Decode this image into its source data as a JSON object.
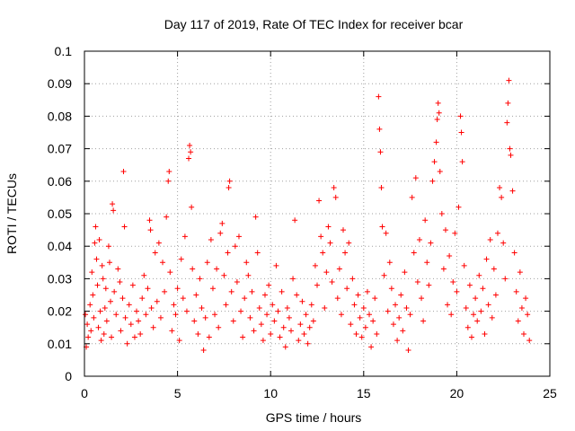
{
  "chart_data": {
    "type": "scatter",
    "title": "Day 117 of 2019, Rate Of TEC Index for receiver bcar",
    "xlabel": "GPS time / hours",
    "ylabel": "ROTI / TECUs",
    "xlim": [
      0,
      25
    ],
    "ylim": [
      0,
      0.1
    ],
    "xticks": [
      "0",
      "5",
      "10",
      "15",
      "20",
      "25"
    ],
    "yticks": [
      "0",
      "0.01",
      "0.02",
      "0.03",
      "0.04",
      "0.05",
      "0.06",
      "0.07",
      "0.08",
      "0.09",
      "0.1"
    ],
    "grid": true,
    "marker": "+",
    "color": "#ff0000",
    "series": [
      {
        "points": [
          [
            0.05,
            0.019
          ],
          [
            0.1,
            0.009
          ],
          [
            0.15,
            0.016
          ],
          [
            0.2,
            0.012
          ],
          [
            0.3,
            0.022
          ],
          [
            0.35,
            0.014
          ],
          [
            0.4,
            0.032
          ],
          [
            0.45,
            0.025
          ],
          [
            0.5,
            0.018
          ],
          [
            0.55,
            0.041
          ],
          [
            0.6,
            0.046
          ],
          [
            0.65,
            0.036
          ],
          [
            0.7,
            0.028
          ],
          [
            0.75,
            0.015
          ],
          [
            0.8,
            0.042
          ],
          [
            0.85,
            0.02
          ],
          [
            0.9,
            0.011
          ],
          [
            0.95,
            0.034
          ],
          [
            1.0,
            0.03
          ],
          [
            1.05,
            0.013
          ],
          [
            1.1,
            0.021
          ],
          [
            1.15,
            0.027
          ],
          [
            1.2,
            0.017
          ],
          [
            1.3,
            0.04
          ],
          [
            1.35,
            0.035
          ],
          [
            1.4,
            0.023
          ],
          [
            1.45,
            0.012
          ],
          [
            1.5,
            0.053
          ],
          [
            1.55,
            0.051
          ],
          [
            1.6,
            0.026
          ],
          [
            1.7,
            0.019
          ],
          [
            1.8,
            0.033
          ],
          [
            1.9,
            0.029
          ],
          [
            1.95,
            0.014
          ],
          [
            2.05,
            0.024
          ],
          [
            2.1,
            0.063
          ],
          [
            2.15,
            0.046
          ],
          [
            2.2,
            0.018
          ],
          [
            2.3,
            0.01
          ],
          [
            2.4,
            0.022
          ],
          [
            2.5,
            0.016
          ],
          [
            2.6,
            0.028
          ],
          [
            2.7,
            0.012
          ],
          [
            2.8,
            0.02
          ],
          [
            2.9,
            0.017
          ],
          [
            3.0,
            0.013
          ],
          [
            3.1,
            0.024
          ],
          [
            3.2,
            0.031
          ],
          [
            3.3,
            0.019
          ],
          [
            3.4,
            0.027
          ],
          [
            3.5,
            0.048
          ],
          [
            3.55,
            0.045
          ],
          [
            3.6,
            0.021
          ],
          [
            3.7,
            0.015
          ],
          [
            3.8,
            0.038
          ],
          [
            3.9,
            0.023
          ],
          [
            4.0,
            0.041
          ],
          [
            4.1,
            0.018
          ],
          [
            4.2,
            0.035
          ],
          [
            4.3,
            0.026
          ],
          [
            4.4,
            0.049
          ],
          [
            4.5,
            0.06
          ],
          [
            4.55,
            0.063
          ],
          [
            4.6,
            0.032
          ],
          [
            4.7,
            0.014
          ],
          [
            4.8,
            0.022
          ],
          [
            4.9,
            0.019
          ],
          [
            5.0,
            0.027
          ],
          [
            5.1,
            0.011
          ],
          [
            5.2,
            0.036
          ],
          [
            5.3,
            0.024
          ],
          [
            5.4,
            0.043
          ],
          [
            5.5,
            0.02
          ],
          [
            5.6,
            0.067
          ],
          [
            5.65,
            0.071
          ],
          [
            5.7,
            0.069
          ],
          [
            5.75,
            0.052
          ],
          [
            5.8,
            0.033
          ],
          [
            5.9,
            0.017
          ],
          [
            6.0,
            0.025
          ],
          [
            6.1,
            0.013
          ],
          [
            6.2,
            0.03
          ],
          [
            6.3,
            0.021
          ],
          [
            6.4,
            0.008
          ],
          [
            6.5,
            0.018
          ],
          [
            6.6,
            0.035
          ],
          [
            6.7,
            0.012
          ],
          [
            6.8,
            0.042
          ],
          [
            6.9,
            0.027
          ],
          [
            7.0,
            0.019
          ],
          [
            7.1,
            0.033
          ],
          [
            7.2,
            0.015
          ],
          [
            7.3,
            0.044
          ],
          [
            7.4,
            0.047
          ],
          [
            7.5,
            0.031
          ],
          [
            7.6,
            0.022
          ],
          [
            7.7,
            0.038
          ],
          [
            7.75,
            0.058
          ],
          [
            7.8,
            0.06
          ],
          [
            7.9,
            0.026
          ],
          [
            8.0,
            0.017
          ],
          [
            8.1,
            0.04
          ],
          [
            8.2,
            0.029
          ],
          [
            8.3,
            0.043
          ],
          [
            8.4,
            0.02
          ],
          [
            8.5,
            0.012
          ],
          [
            8.6,
            0.024
          ],
          [
            8.7,
            0.035
          ],
          [
            8.8,
            0.031
          ],
          [
            8.9,
            0.018
          ],
          [
            9.0,
            0.026
          ],
          [
            9.1,
            0.014
          ],
          [
            9.2,
            0.049
          ],
          [
            9.3,
            0.038
          ],
          [
            9.4,
            0.021
          ],
          [
            9.5,
            0.016
          ],
          [
            9.6,
            0.011
          ],
          [
            9.7,
            0.025
          ],
          [
            9.8,
            0.019
          ],
          [
            9.9,
            0.028
          ],
          [
            10.0,
            0.013
          ],
          [
            10.1,
            0.022
          ],
          [
            10.2,
            0.017
          ],
          [
            10.3,
            0.034
          ],
          [
            10.4,
            0.02
          ],
          [
            10.5,
            0.012
          ],
          [
            10.6,
            0.026
          ],
          [
            10.7,
            0.015
          ],
          [
            10.8,
            0.009
          ],
          [
            10.9,
            0.021
          ],
          [
            11.0,
            0.018
          ],
          [
            11.1,
            0.014
          ],
          [
            11.2,
            0.03
          ],
          [
            11.3,
            0.048
          ],
          [
            11.4,
            0.025
          ],
          [
            11.5,
            0.011
          ],
          [
            11.6,
            0.016
          ],
          [
            11.7,
            0.023
          ],
          [
            11.8,
            0.013
          ],
          [
            11.9,
            0.019
          ],
          [
            12.0,
            0.01
          ],
          [
            12.1,
            0.015
          ],
          [
            12.2,
            0.022
          ],
          [
            12.3,
            0.017
          ],
          [
            12.4,
            0.034
          ],
          [
            12.5,
            0.028
          ],
          [
            12.6,
            0.054
          ],
          [
            12.7,
            0.043
          ],
          [
            12.8,
            0.038
          ],
          [
            12.9,
            0.021
          ],
          [
            13.0,
            0.032
          ],
          [
            13.1,
            0.046
          ],
          [
            13.2,
            0.041
          ],
          [
            13.3,
            0.029
          ],
          [
            13.4,
            0.058
          ],
          [
            13.5,
            0.055
          ],
          [
            13.6,
            0.024
          ],
          [
            13.7,
            0.033
          ],
          [
            13.8,
            0.019
          ],
          [
            13.9,
            0.045
          ],
          [
            14.0,
            0.038
          ],
          [
            14.1,
            0.027
          ],
          [
            14.2,
            0.041
          ],
          [
            14.3,
            0.016
          ],
          [
            14.4,
            0.03
          ],
          [
            14.5,
            0.022
          ],
          [
            14.6,
            0.013
          ],
          [
            14.7,
            0.025
          ],
          [
            14.8,
            0.018
          ],
          [
            14.9,
            0.012
          ],
          [
            15.0,
            0.021
          ],
          [
            15.1,
            0.015
          ],
          [
            15.2,
            0.026
          ],
          [
            15.3,
            0.019
          ],
          [
            15.4,
            0.009
          ],
          [
            15.5,
            0.017
          ],
          [
            15.6,
            0.024
          ],
          [
            15.7,
            0.013
          ],
          [
            15.8,
            0.086
          ],
          [
            15.85,
            0.076
          ],
          [
            15.9,
            0.069
          ],
          [
            15.95,
            0.058
          ],
          [
            16.0,
            0.046
          ],
          [
            16.1,
            0.031
          ],
          [
            16.2,
            0.044
          ],
          [
            16.3,
            0.02
          ],
          [
            16.4,
            0.035
          ],
          [
            16.5,
            0.027
          ],
          [
            16.6,
            0.016
          ],
          [
            16.7,
            0.022
          ],
          [
            16.8,
            0.011
          ],
          [
            16.9,
            0.018
          ],
          [
            17.0,
            0.025
          ],
          [
            17.1,
            0.014
          ],
          [
            17.2,
            0.032
          ],
          [
            17.3,
            0.021
          ],
          [
            17.4,
            0.008
          ],
          [
            17.5,
            0.019
          ],
          [
            17.6,
            0.055
          ],
          [
            17.7,
            0.038
          ],
          [
            17.8,
            0.061
          ],
          [
            17.9,
            0.029
          ],
          [
            18.0,
            0.042
          ],
          [
            18.1,
            0.024
          ],
          [
            18.2,
            0.017
          ],
          [
            18.3,
            0.048
          ],
          [
            18.4,
            0.035
          ],
          [
            18.5,
            0.028
          ],
          [
            18.6,
            0.041
          ],
          [
            18.7,
            0.06
          ],
          [
            18.8,
            0.066
          ],
          [
            18.9,
            0.072
          ],
          [
            18.95,
            0.079
          ],
          [
            19.0,
            0.084
          ],
          [
            19.05,
            0.081
          ],
          [
            19.1,
            0.063
          ],
          [
            19.2,
            0.05
          ],
          [
            19.3,
            0.033
          ],
          [
            19.4,
            0.045
          ],
          [
            19.5,
            0.022
          ],
          [
            19.6,
            0.037
          ],
          [
            19.7,
            0.019
          ],
          [
            19.8,
            0.029
          ],
          [
            19.9,
            0.044
          ],
          [
            20.0,
            0.026
          ],
          [
            20.1,
            0.052
          ],
          [
            20.2,
            0.08
          ],
          [
            20.25,
            0.075
          ],
          [
            20.3,
            0.066
          ],
          [
            20.4,
            0.034
          ],
          [
            20.5,
            0.021
          ],
          [
            20.6,
            0.015
          ],
          [
            20.7,
            0.028
          ],
          [
            20.8,
            0.012
          ],
          [
            20.9,
            0.019
          ],
          [
            21.0,
            0.024
          ],
          [
            21.1,
            0.017
          ],
          [
            21.2,
            0.031
          ],
          [
            21.3,
            0.02
          ],
          [
            21.4,
            0.027
          ],
          [
            21.5,
            0.013
          ],
          [
            21.6,
            0.036
          ],
          [
            21.7,
            0.022
          ],
          [
            21.8,
            0.042
          ],
          [
            21.9,
            0.018
          ],
          [
            22.0,
            0.033
          ],
          [
            22.1,
            0.025
          ],
          [
            22.2,
            0.044
          ],
          [
            22.3,
            0.058
          ],
          [
            22.4,
            0.055
          ],
          [
            22.5,
            0.041
          ],
          [
            22.6,
            0.03
          ],
          [
            22.7,
            0.078
          ],
          [
            22.75,
            0.084
          ],
          [
            22.8,
            0.091
          ],
          [
            22.85,
            0.07
          ],
          [
            22.9,
            0.068
          ],
          [
            23.0,
            0.057
          ],
          [
            23.1,
            0.038
          ],
          [
            23.2,
            0.026
          ],
          [
            23.3,
            0.017
          ],
          [
            23.4,
            0.032
          ],
          [
            23.5,
            0.021
          ],
          [
            23.6,
            0.013
          ],
          [
            23.7,
            0.024
          ],
          [
            23.8,
            0.019
          ],
          [
            23.9,
            0.011
          ]
        ]
      }
    ]
  }
}
